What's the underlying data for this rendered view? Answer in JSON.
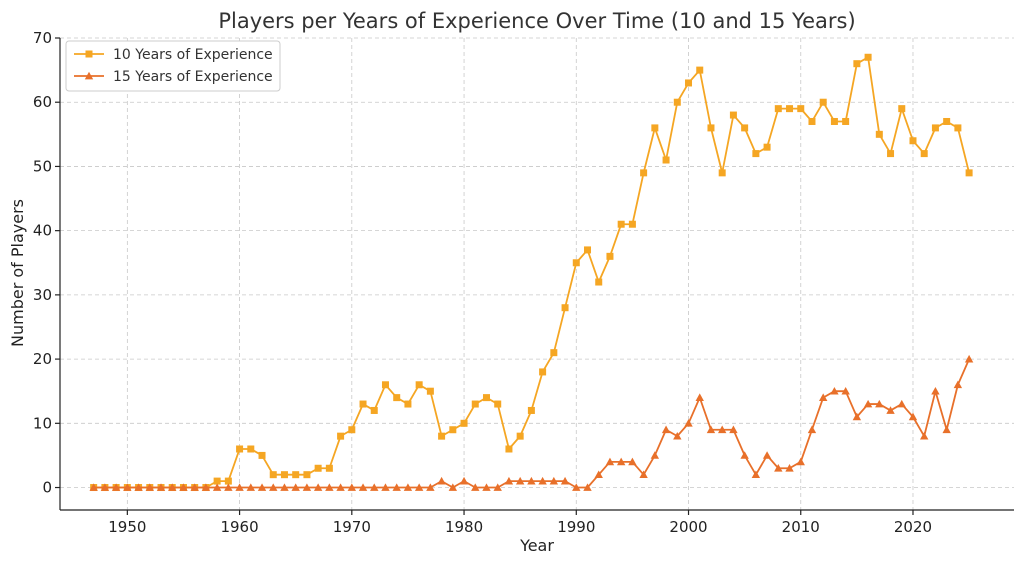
{
  "chart_data": {
    "type": "line",
    "title": "Players per Years of Experience Over Time (10 and 15 Years)",
    "xlabel": "Year",
    "ylabel": "Number of Players",
    "xlim": [
      1944,
      2029
    ],
    "ylim": [
      -3.5,
      70
    ],
    "xticks": [
      1950,
      1960,
      1970,
      1980,
      1990,
      2000,
      2010,
      2020
    ],
    "yticks": [
      0,
      10,
      20,
      30,
      40,
      50,
      60,
      70
    ],
    "grid": true,
    "legend_position": "top-left",
    "x": [
      1947,
      1948,
      1949,
      1950,
      1951,
      1952,
      1953,
      1954,
      1955,
      1956,
      1957,
      1958,
      1959,
      1960,
      1961,
      1962,
      1963,
      1964,
      1965,
      1966,
      1967,
      1968,
      1969,
      1970,
      1971,
      1972,
      1973,
      1974,
      1975,
      1976,
      1977,
      1978,
      1979,
      1980,
      1981,
      1982,
      1983,
      1984,
      1985,
      1986,
      1987,
      1988,
      1989,
      1990,
      1991,
      1992,
      1993,
      1994,
      1995,
      1996,
      1997,
      1998,
      1999,
      2000,
      2001,
      2002,
      2003,
      2004,
      2005,
      2006,
      2007,
      2008,
      2009,
      2010,
      2011,
      2012,
      2013,
      2014,
      2015,
      2016,
      2017,
      2018,
      2019,
      2020,
      2021,
      2022,
      2023,
      2024,
      2025
    ],
    "series": [
      {
        "name": "10 Years of Experience",
        "color": "#f5a623",
        "marker": "square",
        "values": [
          0,
          0,
          0,
          0,
          0,
          0,
          0,
          0,
          0,
          0,
          0,
          1,
          1,
          6,
          6,
          5,
          2,
          2,
          2,
          2,
          3,
          3,
          8,
          9,
          13,
          12,
          16,
          14,
          13,
          16,
          15,
          8,
          9,
          10,
          13,
          14,
          13,
          6,
          8,
          12,
          18,
          21,
          28,
          35,
          37,
          32,
          36,
          41,
          41,
          49,
          56,
          51,
          60,
          63,
          65,
          56,
          49,
          58,
          56,
          52,
          53,
          59,
          59,
          59,
          57,
          60,
          57,
          57,
          66,
          67,
          55,
          52,
          59,
          54,
          52,
          56,
          57,
          56,
          49
        ]
      },
      {
        "name": "15 Years of Experience",
        "color": "#e8702a",
        "marker": "triangle",
        "values": [
          0,
          0,
          0,
          0,
          0,
          0,
          0,
          0,
          0,
          0,
          0,
          0,
          0,
          0,
          0,
          0,
          0,
          0,
          0,
          0,
          0,
          0,
          0,
          0,
          0,
          0,
          0,
          0,
          0,
          0,
          0,
          1,
          0,
          1,
          0,
          0,
          0,
          1,
          1,
          1,
          1,
          1,
          1,
          0,
          0,
          2,
          4,
          4,
          4,
          2,
          5,
          9,
          8,
          10,
          14,
          9,
          9,
          9,
          5,
          2,
          5,
          3,
          3,
          4,
          9,
          14,
          15,
          15,
          11,
          13,
          13,
          12,
          13,
          11,
          8,
          15,
          9,
          16,
          20
        ]
      }
    ]
  }
}
